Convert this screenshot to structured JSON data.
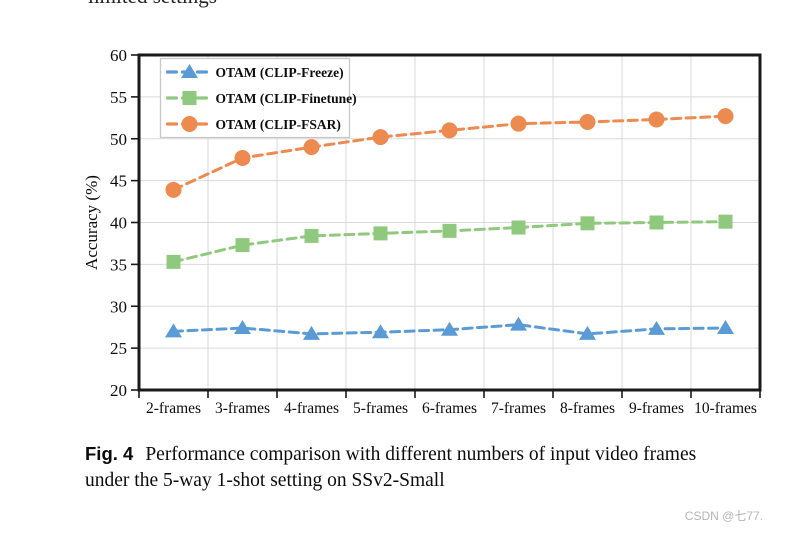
{
  "page": {
    "top_cropped_text": "limited settings",
    "watermark": "CSDN @七77."
  },
  "caption": {
    "label": "Fig. 4",
    "text": "Performance comparison with different numbers of input video frames under the 5-way 1-shot setting on SSv2-Small"
  },
  "chart_data": {
    "type": "line",
    "title": "",
    "xlabel": "",
    "ylabel": "Accuracy (%)",
    "ylim": [
      20,
      60
    ],
    "ytick_step": 5,
    "grid": true,
    "line_style": "dashed",
    "legend_position": "top-left",
    "categories": [
      "2-frames",
      "3-frames",
      "4-frames",
      "5-frames",
      "6-frames",
      "7-frames",
      "8-frames",
      "9-frames",
      "10-frames"
    ],
    "series": [
      {
        "name": "OTAM (CLIP-Freeze)",
        "marker": "triangle",
        "color": "#5B9BD5",
        "values": [
          27.0,
          27.4,
          26.7,
          26.9,
          27.2,
          27.8,
          26.7,
          27.3,
          27.4
        ]
      },
      {
        "name": "OTAM (CLIP-Finetune)",
        "marker": "square",
        "color": "#8FC97D",
        "values": [
          35.3,
          37.3,
          38.4,
          38.7,
          39.0,
          39.4,
          39.9,
          40.0,
          40.1
        ]
      },
      {
        "name": "OTAM (CLIP-FSAR)",
        "marker": "circle",
        "color": "#ED8A4F",
        "values": [
          43.9,
          47.7,
          49.0,
          50.2,
          51.0,
          51.8,
          52.0,
          52.3,
          52.7
        ]
      }
    ],
    "colors": {
      "grid": "#d9d9d9",
      "axis": "#1a1a1a",
      "legend_border": "#c8c8c8",
      "background": "#ffffff"
    }
  }
}
